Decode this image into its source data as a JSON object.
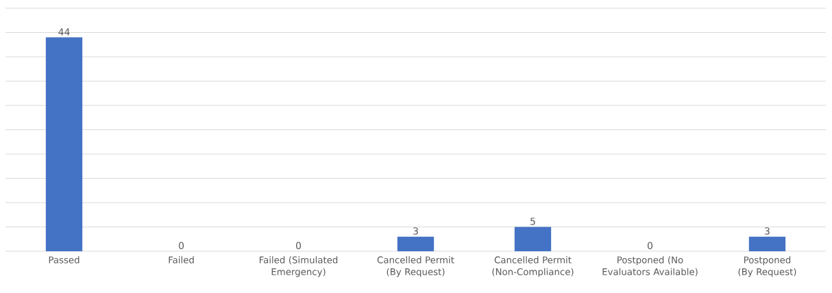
{
  "chart_data": {
    "type": "bar",
    "categories": [
      "Passed",
      "Failed",
      "Failed (Simulated Emergency)",
      "Cancelled Permit (By Request)",
      "Cancelled Permit (Non-Compliance)",
      "Postponed (No Evaluators Available)",
      "Postponed (By Request)"
    ],
    "values": [
      44,
      0,
      0,
      3,
      5,
      0,
      3
    ],
    "color": "#4472c4",
    "ylim": [
      0,
      50
    ],
    "yticks": [
      {
        "value": 0,
        "label": null
      },
      {
        "value": 5,
        "label": null
      },
      {
        "value": 10,
        "label": null
      },
      {
        "value": 15,
        "label": null
      },
      {
        "value": 20,
        "label": null
      },
      {
        "value": 25,
        "label": null
      },
      {
        "value": 30,
        "label": null
      },
      {
        "value": 35,
        "label": null
      },
      {
        "value": 40,
        "label": null
      },
      {
        "value": 45,
        "label": null
      },
      {
        "value": 50,
        "label": null
      }
    ],
    "tick_labels": "x",
    "grid": "y",
    "data_labels": true
  }
}
